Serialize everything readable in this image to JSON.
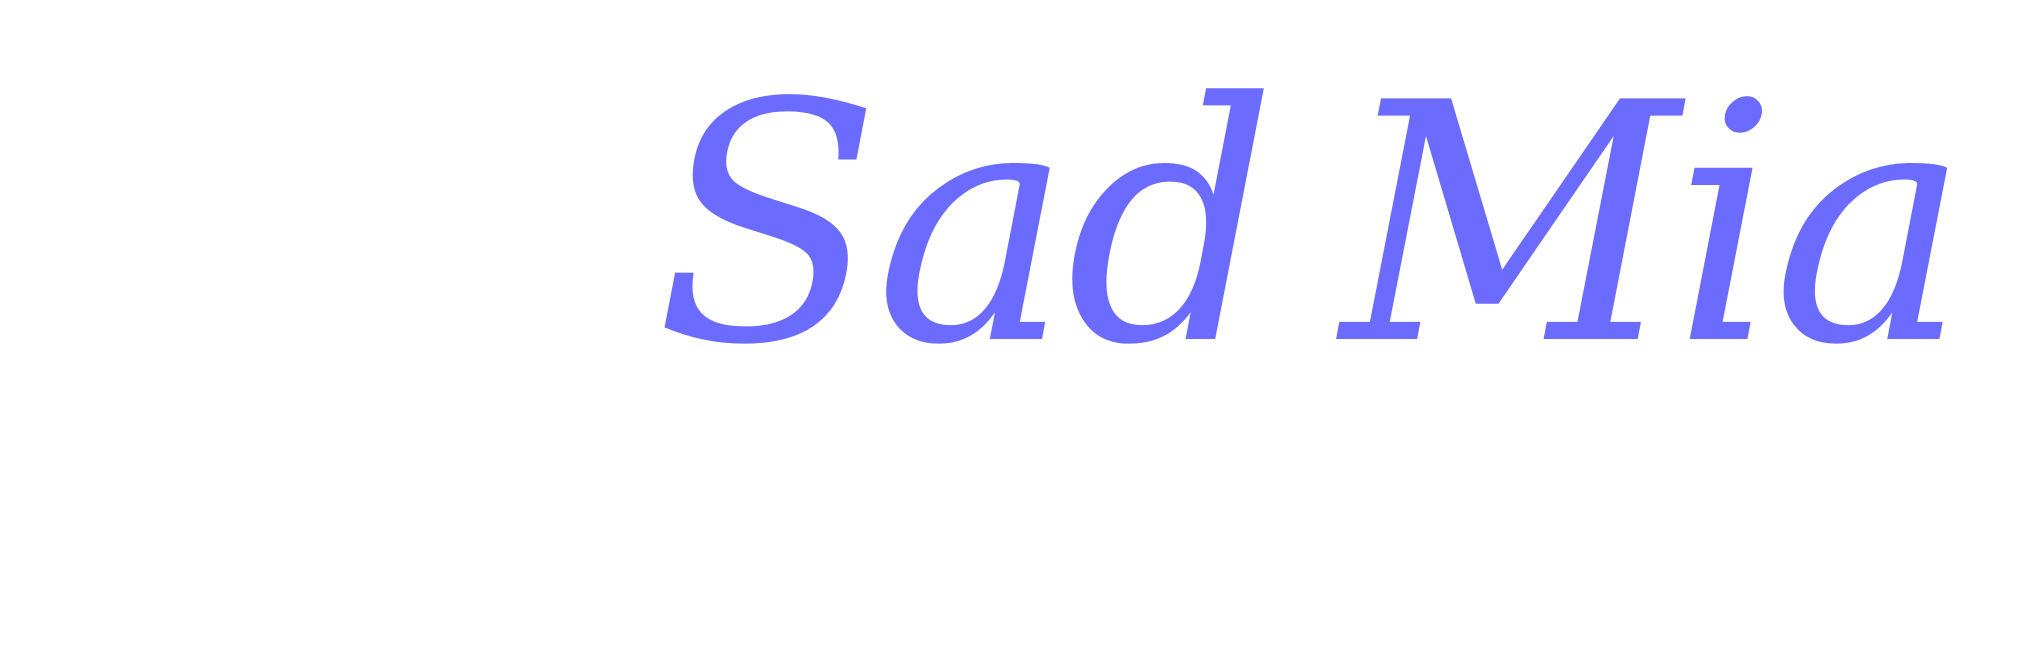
{
  "words": [
    "Sad",
    "Mia"
  ],
  "colors": {
    "background": "#ffffff",
    "text": "#6b6bff"
  }
}
